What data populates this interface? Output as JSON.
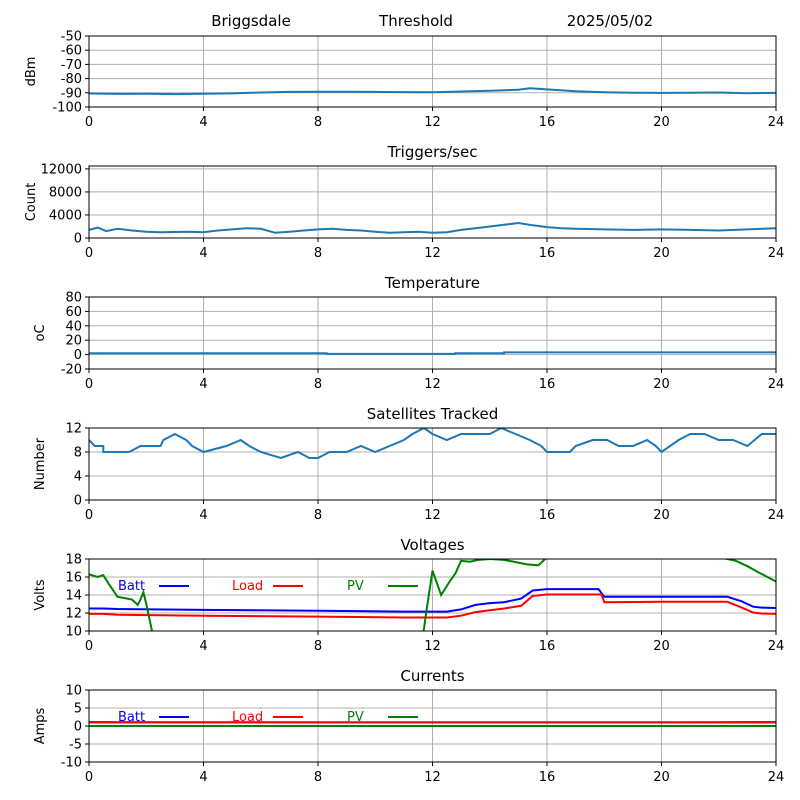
{
  "header": {
    "station": "Briggsdale",
    "mode": "Threshold",
    "date": "2025/05/02"
  },
  "chart_data": [
    {
      "id": "dbm",
      "type": "line",
      "title": "",
      "ylabel": "dBm",
      "xlim": [
        0,
        24
      ],
      "ylim": [
        -100,
        -50
      ],
      "xticks": [
        "0",
        "4",
        "8",
        "12",
        "16",
        "20",
        "24"
      ],
      "yticks": [
        "-50",
        "-60",
        "-70",
        "-80",
        "-90",
        "-100"
      ],
      "grid": true,
      "series": [
        {
          "color": "#1f77b4",
          "points": [
            [
              0,
              -90.5
            ],
            [
              1,
              -90.8
            ],
            [
              2,
              -90.6
            ],
            [
              3,
              -90.9
            ],
            [
              4,
              -90.7
            ],
            [
              5,
              -90.4
            ],
            [
              6,
              -89.8
            ],
            [
              7,
              -89.4
            ],
            [
              8,
              -89.2
            ],
            [
              9,
              -89.3
            ],
            [
              10,
              -89.4
            ],
            [
              11,
              -89.5
            ],
            [
              12,
              -89.6
            ],
            [
              13,
              -89.1
            ],
            [
              14,
              -88.6
            ],
            [
              15,
              -87.9
            ],
            [
              15.4,
              -86.8
            ],
            [
              16,
              -87.6
            ],
            [
              17,
              -88.9
            ],
            [
              18,
              -89.6
            ],
            [
              19,
              -90.0
            ],
            [
              20,
              -90.1
            ],
            [
              21,
              -90.0
            ],
            [
              22,
              -89.8
            ],
            [
              23,
              -90.3
            ],
            [
              24,
              -90.1
            ]
          ]
        }
      ]
    },
    {
      "id": "triggers",
      "type": "line",
      "title": "Triggers/sec",
      "ylabel": "Count",
      "xlim": [
        0,
        24
      ],
      "ylim": [
        0,
        12500
      ],
      "xticks": [
        "0",
        "4",
        "8",
        "12",
        "16",
        "20",
        "24"
      ],
      "yticks": [
        "0",
        "4000",
        "8000",
        "12000"
      ],
      "grid": true,
      "series": [
        {
          "color": "#1f77b4",
          "points": [
            [
              0,
              1400
            ],
            [
              0.3,
              1800
            ],
            [
              0.6,
              1200
            ],
            [
              1,
              1600
            ],
            [
              1.5,
              1300
            ],
            [
              2,
              1100
            ],
            [
              2.5,
              1000
            ],
            [
              3,
              1050
            ],
            [
              3.5,
              1100
            ],
            [
              4,
              1000
            ],
            [
              4.5,
              1300
            ],
            [
              5,
              1500
            ],
            [
              5.5,
              1700
            ],
            [
              6,
              1600
            ],
            [
              6.5,
              900
            ],
            [
              7,
              1100
            ],
            [
              7.5,
              1300
            ],
            [
              8,
              1500
            ],
            [
              8.5,
              1600
            ],
            [
              9,
              1400
            ],
            [
              9.5,
              1300
            ],
            [
              10,
              1100
            ],
            [
              10.5,
              900
            ],
            [
              11,
              1000
            ],
            [
              11.5,
              1100
            ],
            [
              12,
              900
            ],
            [
              12.5,
              1000
            ],
            [
              13,
              1400
            ],
            [
              13.5,
              1700
            ],
            [
              14,
              2000
            ],
            [
              14.5,
              2300
            ],
            [
              15,
              2600
            ],
            [
              15.5,
              2200
            ],
            [
              16,
              1900
            ],
            [
              16.5,
              1700
            ],
            [
              17,
              1600
            ],
            [
              18,
              1500
            ],
            [
              19,
              1400
            ],
            [
              20,
              1500
            ],
            [
              21,
              1400
            ],
            [
              22,
              1300
            ],
            [
              23,
              1500
            ],
            [
              24,
              1700
            ]
          ]
        }
      ]
    },
    {
      "id": "temperature",
      "type": "line",
      "title": "Temperature",
      "ylabel": "oC",
      "xlim": [
        0,
        24
      ],
      "ylim": [
        -20,
        80
      ],
      "xticks": [
        "0",
        "4",
        "8",
        "12",
        "16",
        "20",
        "24"
      ],
      "yticks": [
        "-20",
        "0",
        "20",
        "40",
        "60",
        "80"
      ],
      "grid": true,
      "series": [
        {
          "color": "#1f77b4",
          "points": [
            [
              0,
              2
            ],
            [
              8.3,
              2
            ],
            [
              8.3,
              1
            ],
            [
              12.8,
              1
            ],
            [
              12.8,
              2
            ],
            [
              14.5,
              2
            ],
            [
              14.5,
              3
            ],
            [
              24,
              3
            ]
          ]
        }
      ]
    },
    {
      "id": "satellites",
      "type": "line",
      "title": "Satellites Tracked",
      "ylabel": "Number",
      "xlim": [
        0,
        24
      ],
      "ylim": [
        0,
        12
      ],
      "xticks": [
        "0",
        "4",
        "8",
        "12",
        "16",
        "20",
        "24"
      ],
      "yticks": [
        "0",
        "4",
        "8",
        "12"
      ],
      "grid": true,
      "series": [
        {
          "color": "#1f77b4",
          "points": [
            [
              0,
              10
            ],
            [
              0.2,
              9
            ],
            [
              0.5,
              9
            ],
            [
              0.5,
              8
            ],
            [
              1.4,
              8
            ],
            [
              1.8,
              9
            ],
            [
              2.5,
              9
            ],
            [
              2.6,
              10
            ],
            [
              3,
              11
            ],
            [
              3.4,
              10
            ],
            [
              3.6,
              9
            ],
            [
              4,
              8
            ],
            [
              4.8,
              9
            ],
            [
              5.3,
              10
            ],
            [
              5.6,
              9
            ],
            [
              6,
              8
            ],
            [
              6.7,
              7
            ],
            [
              7.3,
              8
            ],
            [
              7.7,
              7
            ],
            [
              8,
              7
            ],
            [
              8.4,
              8
            ],
            [
              9,
              8
            ],
            [
              9.5,
              9
            ],
            [
              10,
              8
            ],
            [
              10.5,
              9
            ],
            [
              11,
              10
            ],
            [
              11.3,
              11
            ],
            [
              11.7,
              12
            ],
            [
              12,
              11
            ],
            [
              12.5,
              10
            ],
            [
              13,
              11
            ],
            [
              13.6,
              11
            ],
            [
              14,
              11
            ],
            [
              14.4,
              12
            ],
            [
              14.9,
              11
            ],
            [
              15.4,
              10
            ],
            [
              15.8,
              9
            ],
            [
              16,
              8
            ],
            [
              16.8,
              8
            ],
            [
              17,
              9
            ],
            [
              17.6,
              10
            ],
            [
              18.1,
              10
            ],
            [
              18.5,
              9
            ],
            [
              19,
              9
            ],
            [
              19.5,
              10
            ],
            [
              19.8,
              9
            ],
            [
              20,
              8
            ],
            [
              20.6,
              10
            ],
            [
              21,
              11
            ],
            [
              21.5,
              11
            ],
            [
              22,
              10
            ],
            [
              22.5,
              10
            ],
            [
              23,
              9
            ],
            [
              23.5,
              11
            ],
            [
              24,
              11
            ]
          ]
        }
      ]
    },
    {
      "id": "voltages",
      "type": "line",
      "title": "Voltages",
      "ylabel": "Volts",
      "xlim": [
        0,
        24
      ],
      "ylim": [
        10,
        18
      ],
      "xticks": [
        "0",
        "4",
        "8",
        "12",
        "16",
        "20",
        "24"
      ],
      "yticks": [
        "10",
        "12",
        "14",
        "16",
        "18"
      ],
      "grid": true,
      "legend": "top-left",
      "series": [
        {
          "name": "Batt",
          "color": "#0000ff",
          "points": [
            [
              0,
              12.5
            ],
            [
              0.5,
              12.5
            ],
            [
              1,
              12.45
            ],
            [
              4,
              12.35
            ],
            [
              8,
              12.25
            ],
            [
              11,
              12.15
            ],
            [
              12.5,
              12.15
            ],
            [
              13,
              12.4
            ],
            [
              13.5,
              12.9
            ],
            [
              14,
              13.1
            ],
            [
              14.5,
              13.2
            ],
            [
              15.1,
              13.6
            ],
            [
              15.5,
              14.5
            ],
            [
              16,
              14.65
            ],
            [
              17.8,
              14.65
            ],
            [
              18,
              13.8
            ],
            [
              20,
              13.8
            ],
            [
              22.3,
              13.8
            ],
            [
              22.8,
              13.3
            ],
            [
              23.2,
              12.7
            ],
            [
              23.5,
              12.6
            ],
            [
              24,
              12.55
            ]
          ]
        },
        {
          "name": "Load",
          "color": "#ff0000",
          "points": [
            [
              0,
              11.9
            ],
            [
              0.5,
              11.9
            ],
            [
              1,
              11.8
            ],
            [
              4,
              11.7
            ],
            [
              8,
              11.6
            ],
            [
              11,
              11.5
            ],
            [
              12.5,
              11.5
            ],
            [
              13,
              11.7
            ],
            [
              13.5,
              12.1
            ],
            [
              14,
              12.3
            ],
            [
              14.5,
              12.5
            ],
            [
              15.1,
              12.8
            ],
            [
              15.5,
              13.9
            ],
            [
              16,
              14.05
            ],
            [
              17.9,
              14.05
            ],
            [
              18,
              13.2
            ],
            [
              20,
              13.25
            ],
            [
              22.3,
              13.25
            ],
            [
              22.8,
              12.6
            ],
            [
              23.2,
              12.05
            ],
            [
              23.5,
              11.95
            ],
            [
              24,
              11.9
            ]
          ]
        },
        {
          "name": "PV",
          "color": "#008000",
          "points": [
            [
              0,
              16.3
            ],
            [
              0.3,
              16.0
            ],
            [
              0.5,
              16.2
            ],
            [
              0.7,
              15.2
            ],
            [
              1,
              13.8
            ],
            [
              1.5,
              13.5
            ],
            [
              1.7,
              12.9
            ],
            [
              1.8,
              13.5
            ],
            [
              1.9,
              14.3
            ],
            [
              2,
              13.0
            ],
            [
              2.2,
              10.0
            ],
            [
              2.3,
              8.0
            ],
            [
              11.5,
              8.0
            ],
            [
              11.7,
              10.2
            ],
            [
              11.8,
              12.5
            ],
            [
              12,
              16.7
            ],
            [
              12.3,
              14.0
            ],
            [
              12.6,
              15.5
            ],
            [
              12.8,
              16.4
            ],
            [
              13,
              17.8
            ],
            [
              13.3,
              17.7
            ],
            [
              13.6,
              17.9
            ],
            [
              14,
              18.0
            ],
            [
              14.5,
              17.9
            ],
            [
              15,
              17.6
            ],
            [
              15.3,
              17.4
            ],
            [
              15.7,
              17.3
            ],
            [
              16,
              18.2
            ],
            [
              22,
              18.2
            ],
            [
              22.6,
              17.8
            ],
            [
              23,
              17.2
            ],
            [
              23.4,
              16.5
            ],
            [
              24,
              15.5
            ]
          ]
        }
      ]
    },
    {
      "id": "currents",
      "type": "line",
      "title": "Currents",
      "ylabel": "Amps",
      "xlim": [
        0,
        24
      ],
      "ylim": [
        -10,
        10
      ],
      "xticks": [
        "0",
        "4",
        "8",
        "12",
        "16",
        "20",
        "24"
      ],
      "yticks": [
        "-10",
        "-5",
        "0",
        "5",
        "10"
      ],
      "grid": true,
      "legend": "top-left",
      "series": [
        {
          "name": "Batt",
          "color": "#0000ff",
          "points": [
            [
              0,
              1.0
            ],
            [
              24,
              1.0
            ]
          ]
        },
        {
          "name": "Load",
          "color": "#ff0000",
          "points": [
            [
              0,
              1.1
            ],
            [
              4,
              1.05
            ],
            [
              12,
              1.0
            ],
            [
              16,
              1.0
            ],
            [
              20,
              1.0
            ],
            [
              24,
              1.1
            ]
          ]
        },
        {
          "name": "PV",
          "color": "#008000",
          "points": [
            [
              0,
              0.0
            ],
            [
              24,
              0.0
            ]
          ]
        }
      ]
    }
  ]
}
